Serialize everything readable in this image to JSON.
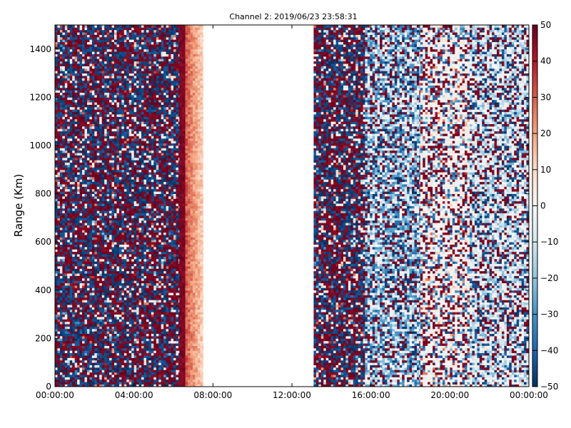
{
  "chart_data": {
    "type": "heatmap",
    "title": "Channel 2: 2019/06/23 23:58:31",
    "xlabel": "",
    "ylabel": "Range (Km)",
    "x_tick_labels": [
      "00:00:00",
      "04:00:00",
      "08:00:00",
      "12:00:00",
      "16:00:00",
      "20:00:00",
      "00:00:00"
    ],
    "x_range_hours": [
      0,
      24
    ],
    "ylim": [
      0,
      1500
    ],
    "y_ticks": [
      0,
      200,
      400,
      600,
      800,
      1000,
      1200,
      1400
    ],
    "colorbar": {
      "range": [
        -50,
        50
      ],
      "ticks": [
        -50,
        -40,
        -30,
        -20,
        -10,
        0,
        10,
        20,
        30,
        40,
        50
      ],
      "colormap": "RdBu_r",
      "colors": [
        "#053061",
        "#2166ac",
        "#4393c3",
        "#92c5de",
        "#d1e5f0",
        "#f7f7f7",
        "#fddbc7",
        "#f4a582",
        "#d6604d",
        "#b2182b",
        "#67001f"
      ]
    },
    "data_gap_hours": [
      7.5,
      13.1
    ],
    "segments": [
      {
        "start_hours": 0.0,
        "end_hours": 6.3,
        "pattern": "noise",
        "description": "random values between -50 and 50"
      },
      {
        "start_hours": 6.3,
        "end_hours": 6.6,
        "pattern": "band",
        "value": 50
      },
      {
        "start_hours": 6.6,
        "end_hours": 7.5,
        "pattern": "gradient",
        "from_value": 30,
        "to_value": 10
      },
      {
        "start_hours": 13.1,
        "end_hours": 15.7,
        "pattern": "noise",
        "description": "random values between -50 and 50"
      },
      {
        "start_hours": 15.7,
        "end_hours": 18.5,
        "pattern": "mixed",
        "description": "blue-dominated (-30 to 0) with red speckle"
      },
      {
        "start_hours": 18.5,
        "end_hours": 21.0,
        "pattern": "mixed",
        "description": "near zero with scattered extremes"
      },
      {
        "start_hours": 21.0,
        "end_hours": 24.0,
        "pattern": "mixed",
        "description": "light blue / near zero with red speckle"
      }
    ]
  }
}
